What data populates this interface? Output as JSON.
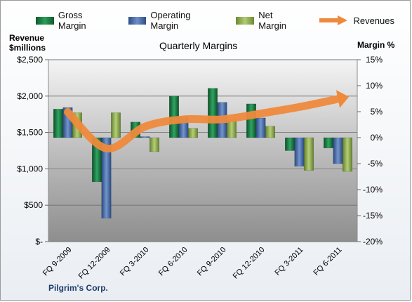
{
  "chart_data": {
    "type": "bar",
    "title": "Quarterly Margins",
    "company": "Pilgrim's Corp.",
    "left_axis_label_line1": "Revenue",
    "left_axis_label_line2": "$millions",
    "right_axis_label": "Margin %",
    "categories": [
      "FQ 9-2009",
      "FQ 12-2009",
      "FQ 3-2010",
      "FQ 6-2010",
      "FQ 9-2010",
      "FQ 12-2010",
      "FQ 3-2011",
      "FQ 6-2011"
    ],
    "left_ticks": [
      "$-",
      "$500",
      "$1,000",
      "$1,500",
      "$2,000",
      "$2,500"
    ],
    "left_ylim": [
      0,
      2500
    ],
    "right_ticks": [
      "-20%",
      "-15%",
      "-10%",
      "-5%",
      "0%",
      "5%",
      "10%",
      "15%"
    ],
    "right_ylim": [
      -20,
      15
    ],
    "series": [
      {
        "name": "Gross Margin",
        "axis": "right",
        "color": "#1e7f45",
        "values": [
          5.5,
          -8.5,
          3.0,
          8.0,
          9.5,
          6.5,
          -2.5,
          -2.0
        ]
      },
      {
        "name": "Operating Margin",
        "axis": "right",
        "color": "#4a6fa8",
        "values": [
          5.8,
          -15.5,
          0.2,
          4.0,
          6.8,
          3.8,
          -5.5,
          -5.0
        ]
      },
      {
        "name": "Net Margin",
        "axis": "right",
        "color": "#8fae4e",
        "values": [
          4.8,
          4.8,
          -2.7,
          1.8,
          3.5,
          2.2,
          -6.3,
          -6.5
        ]
      },
      {
        "name": "Revenues",
        "axis": "left",
        "type": "line",
        "color": "#ee8a3c",
        "values": [
          1780,
          1280,
          1580,
          1680,
          1680,
          1760,
          1850,
          1960
        ]
      }
    ],
    "grid": true,
    "legend": "top"
  }
}
